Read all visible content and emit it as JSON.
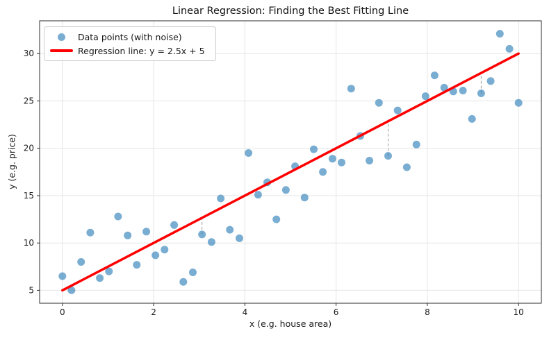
{
  "chart": {
    "title": "Linear Regression: Finding the Best Fitting Line",
    "xlabel": "x (e.g. house area)",
    "ylabel": "y (e.g. price)",
    "legend": {
      "scatter_label": "Data points (with noise)",
      "line_label": "Regression line: y = 2.5x + 5"
    }
  },
  "chart_data": {
    "type": "scatter",
    "title": "Linear Regression: Finding the Best Fitting Line",
    "xlabel": "x (e.g. house area)",
    "ylabel": "y (e.g. price)",
    "xlim": [
      -0.5,
      10.5
    ],
    "ylim": [
      3.64,
      33.46
    ],
    "x_ticks": [
      0,
      2,
      4,
      6,
      8,
      10
    ],
    "y_ticks": [
      5,
      10,
      15,
      20,
      25,
      30
    ],
    "grid": true,
    "legend_position": "upper left",
    "colors": {
      "scatter": "#1f77b4",
      "scatter_opacity": 0.6,
      "line": "#ff0000",
      "grid": "#e5e5e5",
      "spine": "#2b2b2b",
      "residual": "#9a9a9a",
      "text": "#1a1a1a"
    },
    "series": [
      {
        "name": "Data points (with noise)",
        "type": "scatter",
        "x": [
          0.0,
          0.2,
          0.41,
          0.61,
          0.82,
          1.02,
          1.22,
          1.43,
          1.63,
          1.84,
          2.04,
          2.24,
          2.45,
          2.65,
          2.86,
          3.06,
          3.27,
          3.47,
          3.67,
          3.88,
          4.08,
          4.29,
          4.49,
          4.69,
          4.9,
          5.1,
          5.31,
          5.51,
          5.71,
          5.92,
          6.12,
          6.33,
          6.53,
          6.73,
          6.94,
          7.14,
          7.35,
          7.55,
          7.76,
          7.96,
          8.16,
          8.37,
          8.57,
          8.78,
          8.98,
          9.18,
          9.39,
          9.59,
          9.8,
          10.0
        ],
        "y": [
          6.5,
          5.0,
          8.0,
          11.1,
          6.3,
          7.0,
          12.8,
          10.8,
          7.7,
          11.2,
          8.7,
          9.3,
          11.9,
          5.9,
          6.9,
          10.9,
          10.1,
          14.7,
          11.4,
          10.5,
          19.5,
          15.1,
          16.4,
          12.5,
          15.6,
          18.1,
          14.8,
          19.9,
          17.5,
          18.9,
          18.5,
          26.3,
          21.3,
          18.7,
          24.8,
          19.2,
          24.0,
          18.0,
          20.4,
          25.5,
          27.7,
          26.4,
          26.0,
          26.1,
          23.1,
          25.8,
          27.1,
          32.1,
          30.5,
          24.8
        ]
      },
      {
        "name": "Regression line: y = 2.5x + 5",
        "type": "line",
        "slope": 2.5,
        "intercept": 5,
        "x": [
          0,
          10
        ],
        "y": [
          5,
          30
        ]
      }
    ],
    "residual_indices": [
      15,
      35,
      45
    ]
  }
}
